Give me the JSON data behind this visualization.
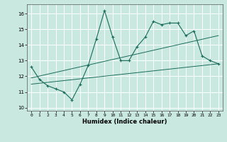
{
  "xlabel": "Humidex (Indice chaleur)",
  "background_color": "#c8e8e0",
  "grid_color": "#ffffff",
  "line_color": "#1a6b5a",
  "xlim": [
    -0.5,
    23.5
  ],
  "ylim": [
    9.8,
    16.6
  ],
  "yticks": [
    10,
    11,
    12,
    13,
    14,
    15,
    16
  ],
  "xticks": [
    0,
    1,
    2,
    3,
    4,
    5,
    6,
    7,
    8,
    9,
    10,
    11,
    12,
    13,
    14,
    15,
    16,
    17,
    18,
    19,
    20,
    21,
    22,
    23
  ],
  "series1_x": [
    0,
    1,
    2,
    3,
    4,
    5,
    6,
    7,
    8,
    9,
    10,
    11,
    12,
    13,
    14,
    15,
    16,
    17,
    18,
    19,
    20,
    21,
    22,
    23
  ],
  "series1_y": [
    12.6,
    11.8,
    11.4,
    11.2,
    11.0,
    10.5,
    11.5,
    12.7,
    14.4,
    16.2,
    14.5,
    13.0,
    13.0,
    13.9,
    14.5,
    15.5,
    15.3,
    15.4,
    15.4,
    14.6,
    14.9,
    13.3,
    13.0,
    12.8
  ],
  "series2_x": [
    0,
    23
  ],
  "series2_y": [
    11.5,
    12.8
  ],
  "series3_x": [
    0,
    23
  ],
  "series3_y": [
    11.9,
    14.6
  ]
}
